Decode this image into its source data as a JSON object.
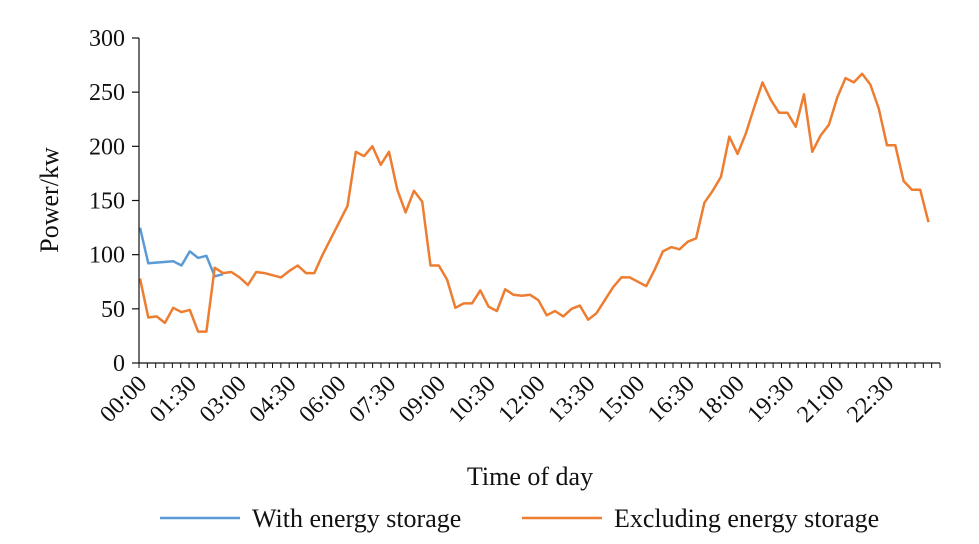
{
  "chart_data": {
    "type": "line",
    "title": "",
    "xlabel": "Time of day",
    "ylabel": "Power/kw",
    "ylim": [
      0,
      300
    ],
    "yticks": [
      0,
      50,
      100,
      150,
      200,
      250,
      300
    ],
    "x_tick_labels": [
      "00:00",
      "01:30",
      "03:00",
      "04:30",
      "06:00",
      "07:30",
      "09:00",
      "10:30",
      "12:00",
      "13:30",
      "15:00",
      "16:30",
      "18:00",
      "19:30",
      "21:00",
      "22:30"
    ],
    "x_points_per_day": 96,
    "grid": false,
    "legend_position": "bottom",
    "series": [
      {
        "name": "With energy storage",
        "color": "#5b9bd5",
        "x": [
          0,
          1,
          4,
          5,
          6,
          7,
          8,
          9,
          10
        ],
        "values": [
          125,
          92,
          94,
          90,
          103,
          97,
          99,
          80,
          82
        ]
      },
      {
        "name": "Excluding energy storage",
        "color": "#ed7d31",
        "x": [
          0,
          1,
          2,
          3,
          4,
          5,
          6,
          7,
          8,
          9,
          10,
          11,
          12,
          13,
          14,
          15,
          16,
          17,
          18,
          19,
          20,
          21,
          22,
          23,
          24,
          25,
          26,
          27,
          28,
          29,
          30,
          31,
          32,
          33,
          34,
          35,
          36,
          37,
          38,
          39,
          40,
          41,
          42,
          43,
          44,
          45,
          46,
          47,
          48,
          49,
          50,
          51,
          52,
          53,
          54,
          55,
          56,
          57,
          58,
          59,
          60,
          61,
          62,
          63,
          64,
          65,
          66,
          67,
          68,
          69,
          70,
          71,
          72,
          73,
          74,
          75,
          76,
          77,
          78,
          79,
          80,
          81,
          82,
          83,
          84,
          85,
          86,
          87,
          88,
          89,
          90,
          91,
          92,
          93,
          94,
          95
        ],
        "values": [
          78,
          42,
          43,
          37,
          51,
          47,
          49,
          29,
          29,
          88,
          83,
          84,
          79,
          72,
          84,
          83,
          81,
          79,
          85,
          90,
          83,
          83,
          100,
          115,
          130,
          145,
          195,
          191,
          200,
          183,
          195,
          160,
          139,
          159,
          149,
          90,
          90,
          77,
          51,
          55,
          55,
          67,
          52,
          48,
          68,
          63,
          62,
          63,
          58,
          44,
          48,
          43,
          50,
          53,
          40,
          46,
          58,
          70,
          79,
          79,
          75,
          71,
          86,
          103,
          107,
          105,
          112,
          115,
          148,
          159,
          172,
          209,
          193,
          212,
          236,
          259,
          243,
          231,
          231,
          218,
          248,
          195,
          210,
          220,
          245,
          263,
          259,
          267,
          257,
          235,
          201,
          201,
          168,
          160,
          160,
          130
        ],
        "value_overrides_note": ""
      }
    ]
  }
}
